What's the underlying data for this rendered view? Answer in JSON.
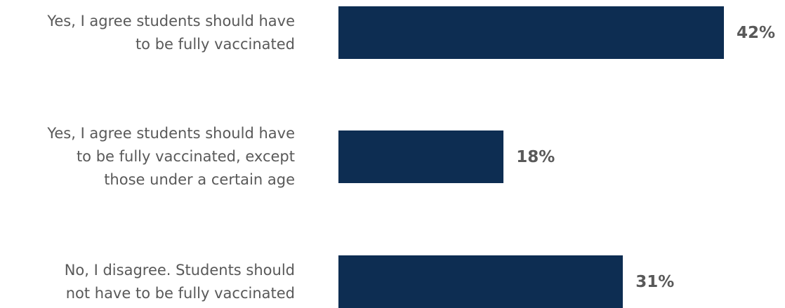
{
  "chart_data": {
    "type": "bar",
    "orientation": "horizontal",
    "title": "",
    "xlabel": "",
    "ylabel": "",
    "categories": [
      [
        "Yes, I agree students should have",
        "to be fully vaccinated"
      ],
      [
        "Yes, I agree students should have",
        "to be fully vaccinated, except",
        "those under a certain age"
      ],
      [
        "No, I disagree. Students should",
        "not have to be fully vaccinated"
      ]
    ],
    "values": [
      42,
      18,
      31
    ],
    "value_labels": [
      "42%",
      "18%",
      "31%"
    ],
    "xlim": [
      0,
      42
    ],
    "grid": false,
    "legend": "none",
    "bar_color": "#0d2d52",
    "label_color": "#595959"
  }
}
